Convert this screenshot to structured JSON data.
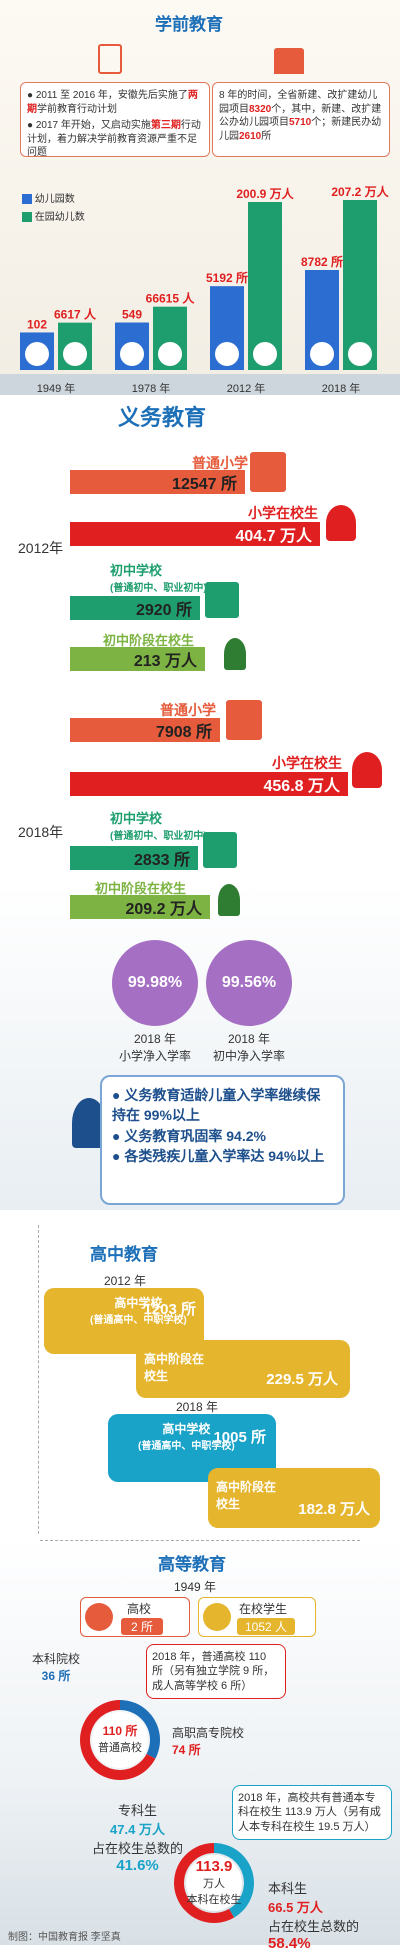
{
  "preschool": {
    "title": "学前教育",
    "note1_prefix": "2011 至 2016 年，安徽先后实施了",
    "note1_highlight": "两期",
    "note1_suffix": "学前教育行动计划",
    "note2_prefix": "2017 年开始，又启动实施",
    "note2_highlight": "第三期",
    "note2_suffix": "行动计划，着力解决学前教育资源严重不足问题",
    "stats_prefix": "8 年的时间，全省新建、改扩建幼儿园项目",
    "stats_v1": "8320",
    "stats_mid1": "个，其中，新建、改扩建公办幼儿园项目",
    "stats_v2": "5710",
    "stats_mid2": "个；新建民办幼儿园",
    "stats_v3": "2610",
    "stats_suffix": "所",
    "legend_kindergarten": "幼儿园数",
    "legend_children": "在园幼儿数",
    "bar_label_1949_k": "102",
    "bar_label_1949_c": "6617",
    "bar_label_1978_k": "549",
    "bar_label_1978_c": "66615",
    "bar_label_2012_k": "5192",
    "bar_label_2012_k_unit": "所",
    "bar_label_2012_c": "200.9",
    "bar_label_2012_c_unit": "万人",
    "bar_label_2018_k": "8782",
    "bar_label_2018_k_unit": "所",
    "bar_label_2018_c": "207.2",
    "bar_label_2018_c_unit": "万人",
    "unit_person": "人",
    "years": [
      "1949 年",
      "1978 年",
      "2012 年",
      "2018 年"
    ]
  },
  "compulsory": {
    "title": "义务教育",
    "year_2012": "2012年",
    "year_2018": "2018年",
    "primary_school": "普通小学",
    "primary_students": "小学在校生",
    "middle_school": "初中学校",
    "middle_school_note": "(普通初中、职业初中)",
    "middle_students": "初中阶段在校生",
    "v2012_primary_school": "12547 所",
    "v2012_primary_students": "404.7 万人",
    "v2012_middle_school": "2920 所",
    "v2012_middle_students": "213 万人",
    "v2018_primary_school": "7908 所",
    "v2018_primary_students": "456.8 万人",
    "v2018_middle_school": "2833 所",
    "v2018_middle_students": "209.2 万人",
    "rate_primary": "99.98%",
    "rate_middle": "99.56%",
    "rate_primary_label1": "2018 年",
    "rate_primary_label2": "小学净入学率",
    "rate_middle_label1": "2018 年",
    "rate_middle_label2": "初中净入学率",
    "bullet1": "义务教育适龄儿童入学率继续保持在 99%以上",
    "bullet2": "义务教育巩固率 94.2%",
    "bullet3": "各类残疾儿童入学率达 94%以上"
  },
  "high_school": {
    "title": "高中教育",
    "year_2012": "2012 年",
    "year_2018": "2018 年",
    "school_label": "高中学校",
    "school_note": "(普通高中、中职学校)",
    "student_label": "高中阶段在校生",
    "v2012_school": "1203 所",
    "v2012_students": "229.5 万人",
    "v2018_school": "1005 所",
    "v2018_students": "182.8 万人"
  },
  "higher": {
    "title": "高等教育",
    "year_1949": "1949 年",
    "college_label": "高校",
    "college_value": "2 所",
    "students_label": "在校学生",
    "students_value": "1052 人",
    "callout_2018": "2018 年，普通高校 110 所（另有独立学院 9 所，成人高等学校 6 所）",
    "undergrad_college_label": "本科院校",
    "undergrad_college_value": "36 所",
    "total_college_value": "110 所",
    "total_college_label": "普通高校",
    "vocational_college_label": "高职高专院校",
    "vocational_college_value": "74 所",
    "callout_students": "2018 年，高校共有普通本专科在校生 113.9 万人（另有成人本专科在校生 19.5 万人）",
    "junior_students_label": "专科生",
    "junior_students_value": "47.4 万人",
    "junior_share_label": "占在校生总数的",
    "junior_share_value": "41.6%",
    "total_students_value": "113.9",
    "total_students_unit": "万人",
    "total_students_label": "本科在校生",
    "undergrad_students_label": "本科生",
    "undergrad_students_value": "66.5 万人",
    "undergrad_share_label": "占在校生总数的",
    "undergrad_share_value": "58.4%",
    "credit": "制图：中国教育报  李坚真"
  },
  "chart_data": [
    {
      "type": "bar",
      "title": "学前教育",
      "categories": [
        "1949 年",
        "1978 年",
        "2012 年",
        "2018 年"
      ],
      "series": [
        {
          "name": "幼儿园数",
          "values": [
            102,
            549,
            5192,
            8782
          ]
        },
        {
          "name": "在园幼儿数",
          "values": [
            6617,
            66615,
            2009000,
            2072000
          ]
        }
      ]
    },
    {
      "type": "bar",
      "title": "义务教育",
      "categories": [
        "普通小学",
        "小学在校生",
        "初中学校",
        "初中阶段在校生"
      ],
      "series": [
        {
          "name": "2012年",
          "values": [
            12547,
            404.7,
            2920,
            213
          ]
        },
        {
          "name": "2018年",
          "values": [
            7908,
            456.8,
            2833,
            209.2
          ]
        }
      ]
    },
    {
      "type": "pie",
      "title": "高等教育",
      "categories": [
        "本科院校",
        "高职高专院校"
      ],
      "values": [
        36,
        74
      ]
    },
    {
      "type": "pie",
      "categories": [
        "专科生",
        "本科生"
      ],
      "values": [
        47.4,
        66.5
      ]
    }
  ],
  "colors": {
    "blue": "#1d6fb8",
    "green": "#1e9e6e",
    "red": "#e02020",
    "orange": "#e55b3b",
    "purple": "#a56fc4",
    "yellow": "#e6b52e",
    "teal": "#1aa3c8"
  }
}
